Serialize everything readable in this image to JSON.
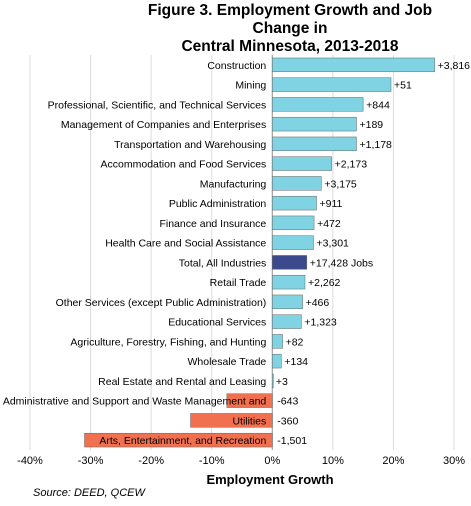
{
  "chart_data": {
    "type": "bar",
    "orientation": "horizontal",
    "title_line1": "Figure 3. Employment Growth and Job Change in",
    "title_line2": "Central Minnesota, 2013-2018",
    "xlabel": "Employment Growth",
    "ylabel": "",
    "xlim": [
      -40,
      30
    ],
    "xticks": [
      "-40%",
      "-30%",
      "-20%",
      "-10%",
      "0%",
      "10%",
      "20%",
      "30%"
    ],
    "grid": true,
    "source": "Source: DEED, QCEW",
    "colors": {
      "industry": "#7fd3e3",
      "total": "#3b4a8c",
      "negative": "#f07050"
    },
    "categories": [
      "Construction",
      "Mining",
      "Professional, Scientific, and Technical Services",
      "Management of Companies and Enterprises",
      "Transportation and Warehousing",
      "Accommodation and Food Services",
      "Manufacturing",
      "Public Administration",
      "Finance and Insurance",
      "Health Care and Social Assistance",
      "Total, All Industries",
      "Retail Trade",
      "Other Services (except Public Administration)",
      "Educational Services",
      "Agriculture, Forestry, Fishing, and Hunting",
      "Wholesale Trade",
      "Real Estate and Rental and Leasing",
      "Administrative and Support and Waste Management and",
      "Utilities",
      "Arts, Entertainment, and Recreation"
    ],
    "values": [
      26.8,
      19.6,
      15.0,
      13.9,
      13.9,
      9.8,
      8.1,
      7.3,
      6.9,
      6.8,
      5.7,
      5.4,
      5.0,
      4.8,
      1.7,
      1.5,
      0.1,
      -7.5,
      -13.5,
      -31.0
    ],
    "data_labels": [
      "+3,816",
      "+51",
      "+844",
      "+189",
      "+1,178",
      "+2,173",
      "+3,175",
      "+911",
      "+472",
      "+3,301",
      "+17,428 Jobs",
      "+2,262",
      "+466",
      "+1,323",
      "+82",
      "+134",
      "+3",
      "-643",
      "-360",
      "-1,501"
    ]
  }
}
